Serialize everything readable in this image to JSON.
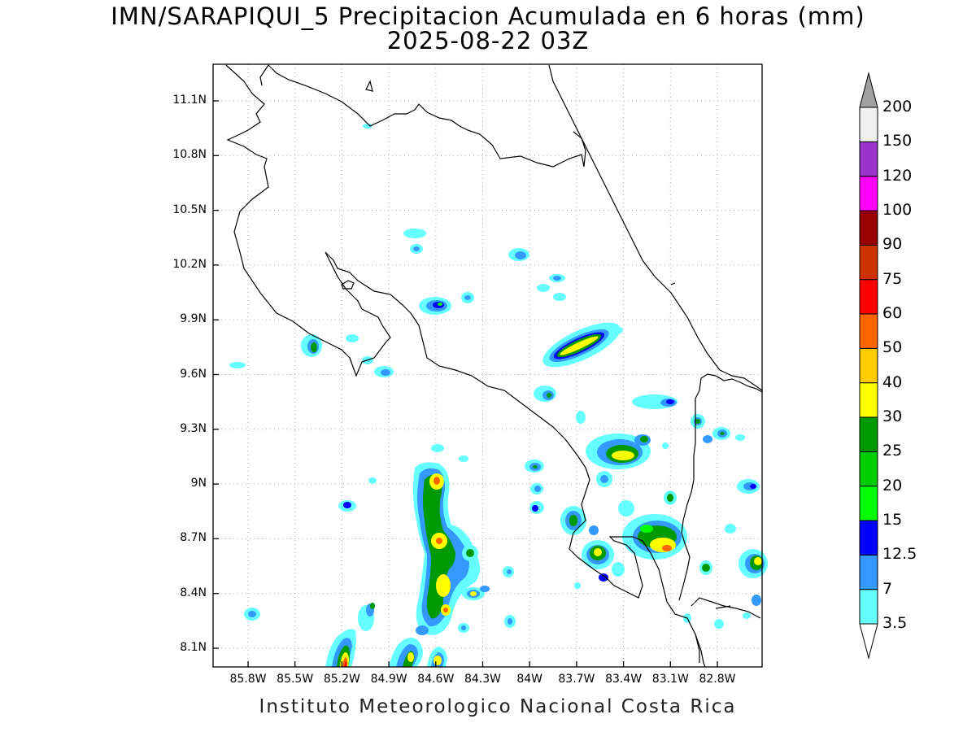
{
  "title": {
    "line1": "IMN/SARAPIQUI_5 Precipitacion Acumulada en 6 horas (mm)",
    "line2": "2025-08-22 03Z"
  },
  "footer": "Instituto Meteorologico Nacional Costa Rica",
  "lat_labels": [
    "11.1N",
    "10.8N",
    "10.5N",
    "10.2N",
    "9.9N",
    "9.6N",
    "9.3N",
    "9N",
    "8.7N",
    "8.4N",
    "8.1N"
  ],
  "lon_labels": [
    "85.8W",
    "85.5W",
    "85.2W",
    "84.9W",
    "84.6W",
    "84.3W",
    "84W",
    "83.7W",
    "83.4W",
    "83.1W",
    "82.8W"
  ],
  "colorbar": {
    "levels": [
      "3.5",
      "7",
      "12.5",
      "15",
      "20",
      "25",
      "30",
      "40",
      "50",
      "60",
      "75",
      "90",
      "100",
      "120",
      "150",
      "200"
    ],
    "colors": [
      "#66ffff",
      "#3399ff",
      "#0000ff",
      "#00ff00",
      "#00cc00",
      "#009900",
      "#ffff00",
      "#ffcc00",
      "#ff6600",
      "#ff0000",
      "#cc3300",
      "#990000",
      "#ff00ff",
      "#9933cc",
      "#f0f0f0",
      "#a0a0a0"
    ]
  },
  "colors": {
    "grid": "#aaaaaa",
    "coast": "#000000"
  }
}
